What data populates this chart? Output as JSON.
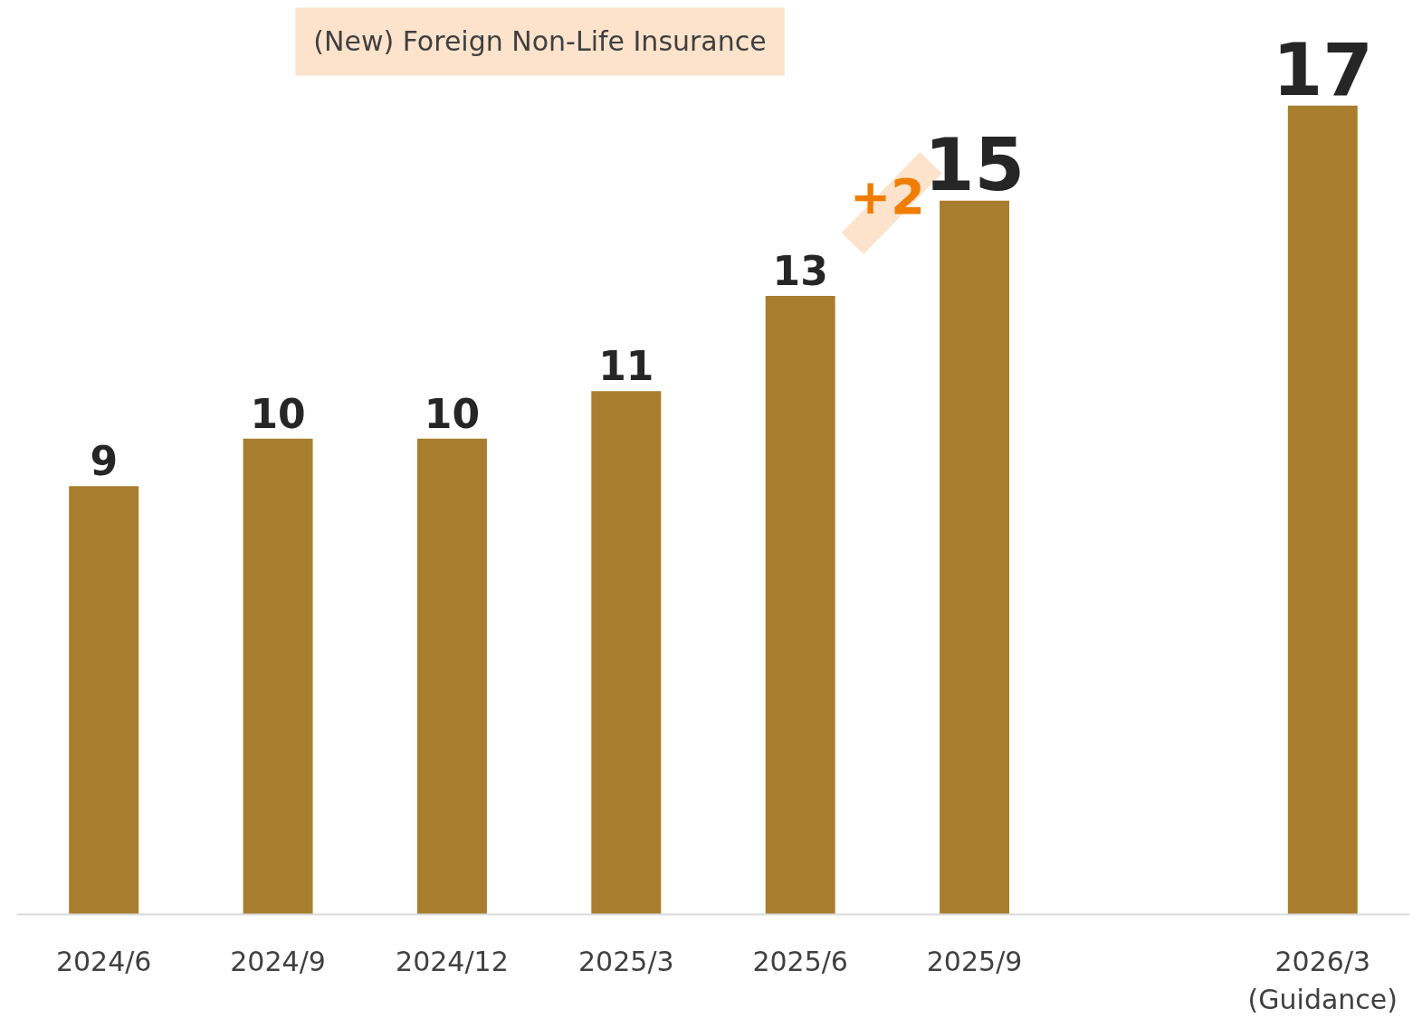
{
  "chart_data": {
    "type": "bar",
    "categories": [
      "2024/6",
      "2024/9",
      "2024/12",
      "2025/3",
      "2025/6",
      "2025/9",
      null,
      "2026/3\n(Guidance)"
    ],
    "values": [
      9,
      10,
      10,
      11,
      13,
      15,
      null,
      17
    ],
    "color": "#a87d2e",
    "data_labels": true,
    "grid": false,
    "annotations": [
      "(New) Foreign Non-Life Insurance",
      "+2"
    ]
  }
}
